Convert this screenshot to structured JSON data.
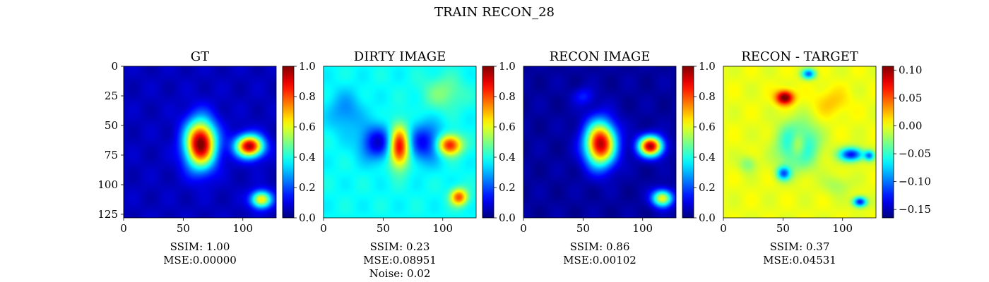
{
  "figure": {
    "suptitle": "TRAIN RECON_28"
  },
  "chart_data": [
    {
      "type": "heatmap",
      "title": "GT",
      "colormap": "jet",
      "xticks": [
        0,
        50,
        100
      ],
      "yticks": [
        0,
        25,
        50,
        75,
        100,
        125
      ],
      "xlim": [
        0,
        128
      ],
      "ylim": [
        128,
        0
      ],
      "vlim": [
        0.0,
        1.0
      ],
      "colorbar_ticks": [
        "0.0",
        "0.2",
        "0.4",
        "0.6",
        "0.8",
        "1.0"
      ],
      "background_value": 0.06,
      "blobs": [
        {
          "x": 64,
          "y": 65,
          "sx": 9,
          "sy": 14,
          "amp": 0.96
        },
        {
          "x": 105,
          "y": 67,
          "sx": 8,
          "sy": 6.5,
          "amp": 0.9
        },
        {
          "x": 115,
          "y": 112,
          "sx": 6,
          "sy": 5,
          "amp": 0.6
        }
      ],
      "caption": [
        "SSIM: 1.00",
        "MSE:0.00000"
      ]
    },
    {
      "type": "heatmap",
      "title": "DIRTY IMAGE",
      "colormap": "jet",
      "xticks": [
        0,
        50,
        100
      ],
      "yticks": [],
      "xlim": [
        0,
        128
      ],
      "ylim": [
        128,
        0
      ],
      "vlim": [
        0.0,
        1.0
      ],
      "colorbar_ticks": [
        "0.0",
        "0.2",
        "0.4",
        "0.6",
        "0.8",
        "1.0"
      ],
      "background_value": 0.38,
      "blobs": [
        {
          "x": 63,
          "y": 67,
          "sx": 6,
          "sy": 12,
          "amp": 0.58
        },
        {
          "x": 105,
          "y": 66,
          "sx": 7,
          "sy": 6,
          "amp": 0.52
        },
        {
          "x": 113,
          "y": 110,
          "sx": 5,
          "sy": 5,
          "amp": 0.42
        },
        {
          "x": 45,
          "y": 64,
          "sx": 10,
          "sy": 10,
          "amp": -0.3
        },
        {
          "x": 84,
          "y": 64,
          "sx": 11,
          "sy": 11,
          "amp": -0.26
        },
        {
          "x": 18,
          "y": 38,
          "sx": 10,
          "sy": 12,
          "amp": -0.12
        },
        {
          "x": 100,
          "y": 22,
          "sx": 12,
          "sy": 10,
          "amp": 0.12
        }
      ],
      "caption": [
        "SSIM: 0.23",
        "MSE:0.08951",
        "Noise: 0.02"
      ]
    },
    {
      "type": "heatmap",
      "title": "RECON IMAGE",
      "colormap": "jet",
      "xticks": [
        0,
        50,
        100
      ],
      "yticks": [],
      "xlim": [
        0,
        128
      ],
      "ylim": [
        128,
        0
      ],
      "vlim": [
        0.0,
        1.0
      ],
      "colorbar_ticks": [
        "0.0",
        "0.2",
        "0.4",
        "0.6",
        "0.8",
        "1.0"
      ],
      "background_value": 0.03,
      "blobs": [
        {
          "x": 64,
          "y": 65,
          "sx": 9,
          "sy": 13,
          "amp": 0.92
        },
        {
          "x": 106,
          "y": 67,
          "sx": 7,
          "sy": 6,
          "amp": 0.92
        },
        {
          "x": 116,
          "y": 111,
          "sx": 6,
          "sy": 5,
          "amp": 0.6
        },
        {
          "x": 50,
          "y": 25,
          "sx": 6,
          "sy": 5,
          "amp": 0.12
        }
      ],
      "caption": [
        "SSIM: 0.86",
        "MSE:0.00102"
      ]
    },
    {
      "type": "heatmap",
      "title": "RECON - TARGET",
      "colormap": "jet",
      "xticks": [
        0,
        50,
        100
      ],
      "yticks": [],
      "xlim": [
        0,
        128
      ],
      "ylim": [
        128,
        0
      ],
      "vlim": [
        -0.165,
        0.107
      ],
      "colorbar_ticks": [
        "0.10",
        "0.05",
        "0.00",
        "−0.05",
        "−0.10",
        "−0.15"
      ],
      "colorbar_tick_values": [
        0.1,
        0.05,
        0.0,
        -0.05,
        -0.1,
        -0.15
      ],
      "background_value": 0.0,
      "blobs": [
        {
          "x": 51,
          "y": 26,
          "sx": 5,
          "sy": 4,
          "amp": 0.12
        },
        {
          "x": 62,
          "y": 66,
          "sx": 11,
          "sy": 13,
          "amp": -0.09
        },
        {
          "x": 62,
          "y": 66,
          "sx": 5,
          "sy": 8,
          "amp": 0.07
        },
        {
          "x": 107,
          "y": 74,
          "sx": 7,
          "sy": 4,
          "amp": -0.13
        },
        {
          "x": 122,
          "y": 75,
          "sx": 3,
          "sy": 3,
          "amp": -0.09
        },
        {
          "x": 71,
          "y": 6,
          "sx": 4,
          "sy": 3,
          "amp": -0.1
        },
        {
          "x": 50,
          "y": 90,
          "sx": 4,
          "sy": 4,
          "amp": -0.1
        },
        {
          "x": 114,
          "y": 114,
          "sx": 4,
          "sy": 3,
          "amp": -0.13
        },
        {
          "x": 20,
          "y": 82,
          "sx": 5,
          "sy": 5,
          "amp": -0.03
        },
        {
          "x": 95,
          "y": 100,
          "sx": 8,
          "sy": 6,
          "amp": -0.02
        },
        {
          "x": 90,
          "y": 30,
          "sx": 10,
          "sy": 8,
          "amp": 0.02
        }
      ],
      "caption": [
        "SSIM: 0.37",
        "MSE:0.04531"
      ]
    }
  ]
}
